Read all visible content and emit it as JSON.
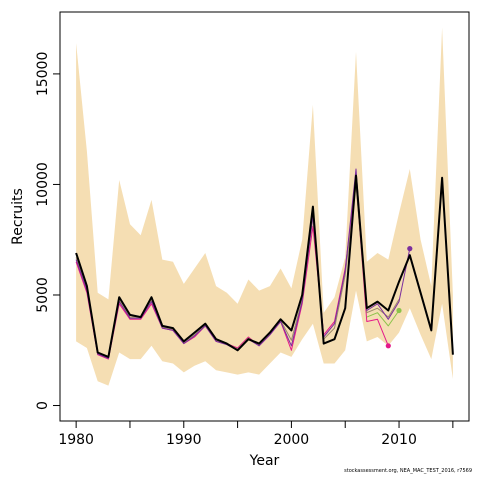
{
  "footer_text": "stockassessment.org, NEA_MAC_TEST_2016, r7569",
  "chart_data": {
    "type": "line",
    "xlabel": "Year",
    "ylabel": "Recruits",
    "xlim": [
      1978.5,
      2016.5
    ],
    "ylim": [
      -700,
      17800
    ],
    "xticks": [
      1980,
      1985,
      1990,
      1995,
      2000,
      2005,
      2010,
      2015
    ],
    "xtick_labels": [
      "1980",
      "",
      "1990",
      "",
      "2000",
      "",
      "2010",
      ""
    ],
    "yticks": [
      0,
      5000,
      10000,
      15000
    ],
    "ytick_labels": [
      "0",
      "5000",
      "10000",
      "15000"
    ],
    "grid": false,
    "legend": "none",
    "band": {
      "color": "#f5deb3",
      "x": [
        1980,
        1981,
        1982,
        1983,
        1984,
        1985,
        1986,
        1987,
        1988,
        1989,
        1990,
        1991,
        1992,
        1993,
        1994,
        1995,
        1996,
        1997,
        1998,
        1999,
        2000,
        2001,
        2002,
        2003,
        2004,
        2005,
        2006,
        2007,
        2008,
        2009,
        2010,
        2011,
        2012,
        2013,
        2014,
        2015
      ],
      "lower": [
        2900,
        2600,
        1100,
        900,
        2400,
        2100,
        2100,
        2700,
        2000,
        1900,
        1500,
        1800,
        2000,
        1600,
        1500,
        1400,
        1500,
        1400,
        1900,
        2400,
        2200,
        3000,
        3700,
        1900,
        1900,
        2500,
        5200,
        2900,
        3100,
        2700,
        3300,
        4400,
        3200,
        2100,
        4600,
        1200
      ],
      "upper": [
        16400,
        11500,
        5100,
        4800,
        10200,
        8200,
        7700,
        9300,
        6600,
        6500,
        5500,
        6200,
        6900,
        5400,
        5100,
        4600,
        5700,
        5200,
        5400,
        6200,
        5300,
        7500,
        13600,
        4200,
        4900,
        6700,
        16000,
        6500,
        6900,
        6600,
        8700,
        10700,
        7500,
        5400,
        17100,
        5000
      ]
    },
    "series": [
      {
        "color": "#000000",
        "x": [
          1980,
          1981,
          1982,
          1983,
          1984,
          1985,
          1986,
          1987,
          1988,
          1989,
          1990,
          1991,
          1992,
          1993,
          1994,
          1995,
          1996,
          1997,
          1998,
          1999,
          2000,
          2001,
          2002,
          2003,
          2004,
          2005,
          2006,
          2007,
          2008,
          2009,
          2010,
          2011,
          2012,
          2013,
          2014,
          2015
        ],
        "values": [
          6900,
          5400,
          2400,
          2200,
          4900,
          4100,
          4000,
          4900,
          3600,
          3500,
          2900,
          3300,
          3700,
          3000,
          2800,
          2500,
          3000,
          2800,
          3300,
          3900,
          3400,
          5000,
          9000,
          2800,
          3000,
          4400,
          10400,
          4400,
          4700,
          4300,
          5600,
          6800,
          5100,
          3400,
          10300,
          2300
        ],
        "width": 2
      },
      {
        "color": "#e41a8a",
        "x": [
          1980,
          1981,
          1982,
          1983,
          1984,
          1985,
          1986,
          1987,
          1988,
          1989,
          1990,
          1991,
          1992,
          1993,
          1994,
          1995,
          1996,
          1997,
          1998,
          1999,
          2000,
          2001,
          2002,
          2003,
          2004,
          2005,
          2006,
          2007,
          2008,
          2009
        ],
        "values": [
          6500,
          5100,
          2300,
          2100,
          4600,
          3900,
          3900,
          4600,
          3500,
          3400,
          2800,
          3100,
          3600,
          2900,
          2800,
          2600,
          3100,
          2700,
          3200,
          3800,
          2500,
          4600,
          8100,
          3200,
          3800,
          6200,
          10200,
          3800,
          3900,
          2700
        ],
        "width": 1,
        "end_point": true
      },
      {
        "color": "#9d8a6a",
        "x": [
          1980,
          1981,
          1982,
          1983,
          1984,
          1985,
          1986,
          1987,
          1988,
          1989,
          1990,
          1991,
          1992,
          1993,
          1994,
          1995,
          1996,
          1997,
          1998,
          1999,
          2000,
          2001,
          2002,
          2003,
          2004,
          2005,
          2006,
          2007,
          2008,
          2009,
          2010
        ],
        "values": [
          6700,
          5300,
          2350,
          2150,
          4750,
          4000,
          4000,
          4750,
          3550,
          3450,
          2850,
          3200,
          3650,
          2950,
          2800,
          2550,
          3050,
          2750,
          3250,
          3850,
          2950,
          4800,
          8500,
          3000,
          3500,
          5900,
          10000,
          4200,
          4400,
          4000,
          4800
        ],
        "width": 1
      },
      {
        "color": "#7b2e9e",
        "x": [
          1980,
          1981,
          1982,
          1983,
          1984,
          1985,
          1986,
          1987,
          1988,
          1989,
          1990,
          1991,
          1992,
          1993,
          1994,
          1995,
          1996,
          1997,
          1998,
          1999,
          2000,
          2001,
          2002,
          2003,
          2004,
          2005,
          2006,
          2007,
          2008,
          2009,
          2010,
          2011
        ],
        "values": [
          6600,
          5200,
          2330,
          2130,
          4700,
          3950,
          3950,
          4700,
          3500,
          3400,
          2800,
          3150,
          3600,
          2900,
          2750,
          2500,
          3000,
          2700,
          3200,
          3800,
          2700,
          4700,
          8600,
          3100,
          3700,
          6100,
          10700,
          4300,
          4600,
          3900,
          4700,
          7100
        ],
        "width": 1,
        "end_point": true
      },
      {
        "color": "#8bc34a",
        "x": [
          2007,
          2008,
          2009,
          2010
        ],
        "values": [
          4000,
          4200,
          3600,
          4300
        ],
        "width": 1,
        "end_point": true
      }
    ]
  }
}
